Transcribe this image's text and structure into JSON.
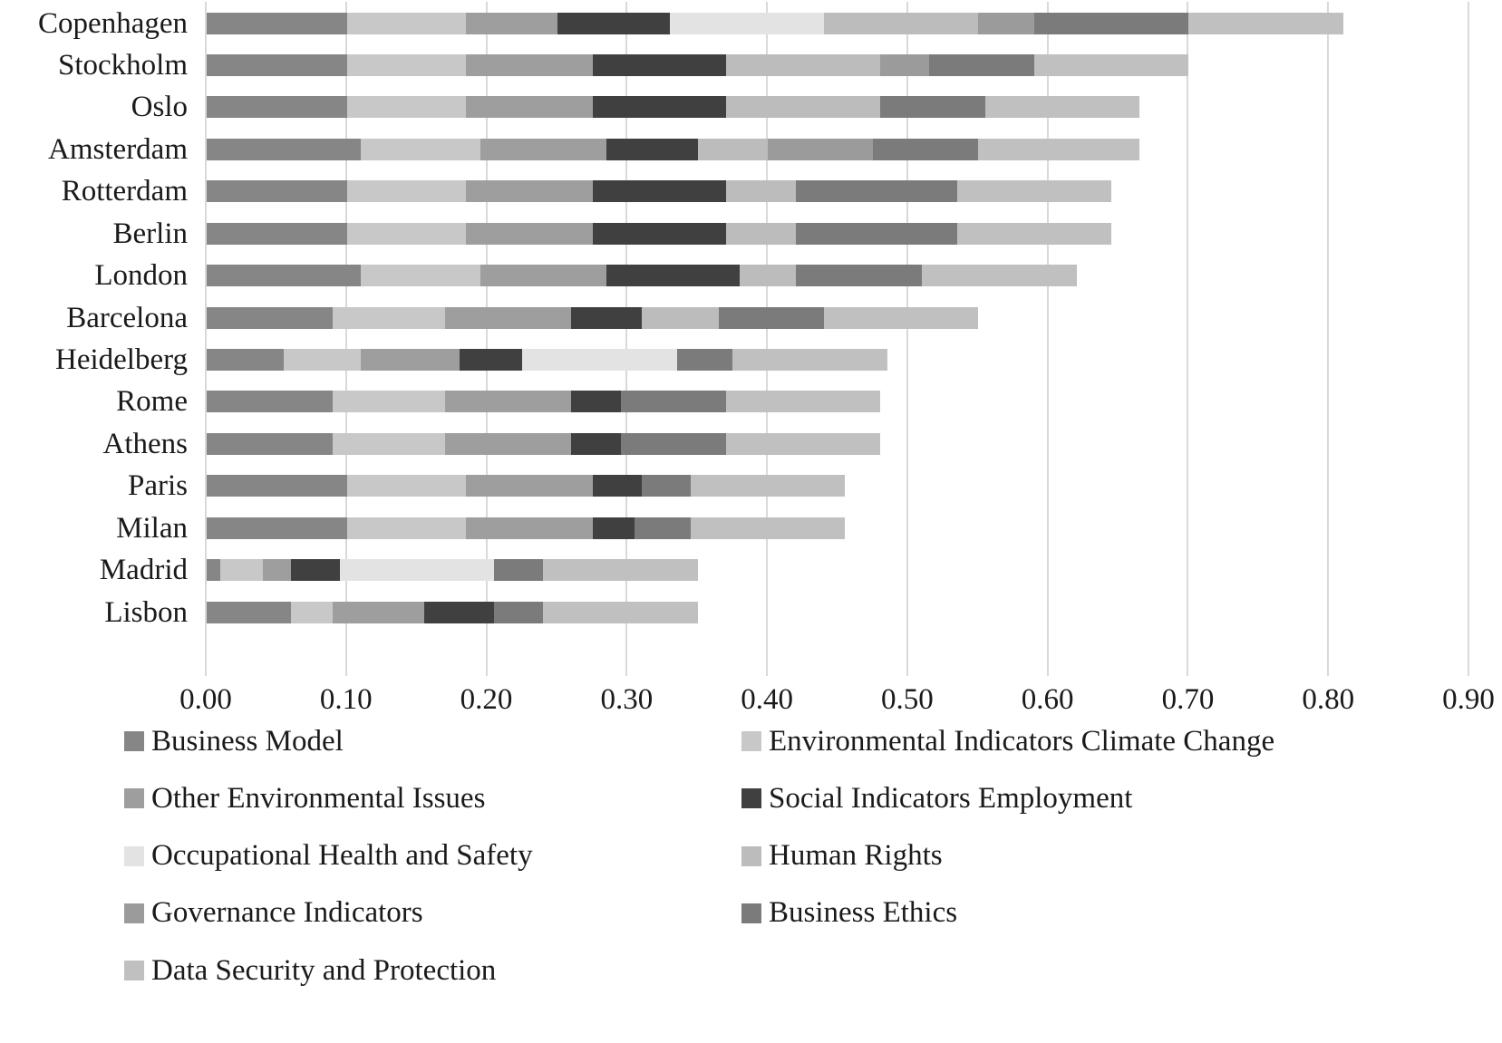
{
  "chart_data": {
    "type": "bar",
    "orientation": "horizontal",
    "stacked": true,
    "title": "",
    "xlabel": "",
    "ylabel": "",
    "categories": [
      "Copenhagen",
      "Stockholm",
      "Oslo",
      "Amsterdam",
      "Rotterdam",
      "Berlin",
      "London",
      "Barcelona",
      "Heidelberg",
      "Rome",
      "Athens",
      "Paris",
      "Milan",
      "Madrid",
      "Lisbon"
    ],
    "series": [
      {
        "name": "Business Model",
        "color": "#868686",
        "values": [
          0.1,
          0.1,
          0.1,
          0.11,
          0.1,
          0.1,
          0.11,
          0.09,
          0.055,
          0.09,
          0.09,
          0.1,
          0.1,
          0.01,
          0.06
        ]
      },
      {
        "name": "Environmental Indicators Climate Change",
        "color": "#c8c8c8",
        "values": [
          0.085,
          0.085,
          0.085,
          0.085,
          0.085,
          0.085,
          0.085,
          0.08,
          0.055,
          0.08,
          0.08,
          0.085,
          0.085,
          0.03,
          0.03
        ]
      },
      {
        "name": "Other Environmental Issues",
        "color": "#9e9e9e",
        "values": [
          0.065,
          0.09,
          0.09,
          0.09,
          0.09,
          0.09,
          0.09,
          0.09,
          0.07,
          0.09,
          0.09,
          0.09,
          0.09,
          0.02,
          0.065
        ]
      },
      {
        "name": "Social Indicators Employment",
        "color": "#404040",
        "values": [
          0.08,
          0.095,
          0.095,
          0.065,
          0.095,
          0.095,
          0.095,
          0.05,
          0.045,
          0.035,
          0.035,
          0.035,
          0.03,
          0.035,
          0.05
        ]
      },
      {
        "name": "Occupational Health and Safety",
        "color": "#e3e3e3",
        "values": [
          0.11,
          0,
          0,
          0,
          0,
          0,
          0,
          0,
          0.11,
          0,
          0,
          0,
          0,
          0.11,
          0
        ]
      },
      {
        "name": "Human Rights",
        "color": "#bcbcbc",
        "values": [
          0.11,
          0.11,
          0.11,
          0.05,
          0.05,
          0.05,
          0.04,
          0.055,
          0,
          0,
          0,
          0,
          0,
          0,
          0
        ]
      },
      {
        "name": "Governance Indicators",
        "color": "#9b9b9b",
        "values": [
          0.04,
          0.035,
          0,
          0.075,
          0,
          0,
          0,
          0,
          0,
          0,
          0,
          0,
          0,
          0,
          0
        ]
      },
      {
        "name": "Business Ethics",
        "color": "#7b7b7b",
        "values": [
          0.11,
          0.075,
          0.075,
          0.075,
          0.115,
          0.115,
          0.09,
          0.075,
          0.04,
          0.075,
          0.075,
          0.035,
          0.04,
          0.035,
          0.035
        ]
      },
      {
        "name": "Data Security and Protection",
        "color": "#c0c0c0",
        "values": [
          0.11,
          0.11,
          0.11,
          0.115,
          0.11,
          0.11,
          0.11,
          0.11,
          0.11,
          0.11,
          0.11,
          0.11,
          0.11,
          0.11,
          0.11
        ]
      }
    ],
    "totals": [
      0.81,
      0.7,
      0.665,
      0.665,
      0.645,
      0.645,
      0.62,
      0.55,
      0.485,
      0.48,
      0.48,
      0.455,
      0.455,
      0.35,
      0.35
    ],
    "x_axis": {
      "min": 0,
      "max": 0.9,
      "step": 0.1,
      "tick_labels": [
        "0.00",
        "0.10",
        "0.20",
        "0.30",
        "0.40",
        "0.50",
        "0.60",
        "0.70",
        "0.80",
        "0.90"
      ]
    },
    "grid": {
      "vertical": true,
      "color": "#d9d9d9"
    },
    "legend": {
      "position": "bottom",
      "columns": 2
    },
    "text_color": "#1a1a1a"
  }
}
